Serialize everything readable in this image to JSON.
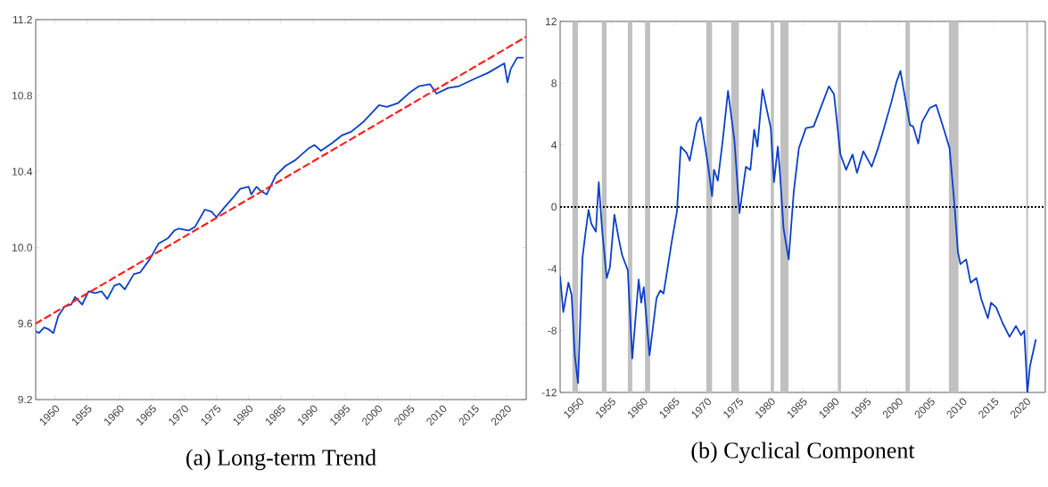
{
  "chart_data": [
    {
      "type": "line",
      "title": "(a) Long-term Trend",
      "xlim": [
        1947,
        2023
      ],
      "ylim": [
        9.2,
        11.2
      ],
      "xticks": [
        1950,
        1955,
        1960,
        1965,
        1970,
        1975,
        1980,
        1985,
        1990,
        1995,
        2000,
        2005,
        2010,
        2015,
        2020
      ],
      "yticks": [
        9.2,
        9.6,
        {
          "value": 10.0,
          "label": "10.0"
        },
        10.4,
        10.8,
        11.2
      ],
      "series": [
        {
          "color": "#0a3fc8",
          "x": [
            1947.0,
            1947.5,
            1948.3,
            1949.0,
            1949.75,
            1950.5,
            1951.5,
            1952.5,
            1953.1,
            1954.2,
            1955.2,
            1956.2,
            1957.2,
            1958.1,
            1959.2,
            1960.0,
            1960.8,
            1962.2,
            1963.2,
            1964.7,
            1966.0,
            1967.5,
            1968.5,
            1969.2,
            1970.7,
            1971.7,
            1973.2,
            1974.2,
            1975.0,
            1976.2,
            1977.5,
            1978.7,
            1980.0,
            1980.4,
            1981.2,
            1981.8,
            1982.8,
            1984.2,
            1985.7,
            1987.2,
            1989.2,
            1990.2,
            1991.2,
            1992.9,
            1994.4,
            1995.9,
            1997.7,
            2000.2,
            2001.4,
            2003.1,
            2005.1,
            2006.4,
            2008.1,
            2009.1,
            2010.9,
            2012.6,
            2015.1,
            2017.1,
            2019.6,
            2020.1,
            2020.6,
            2021.6,
            2022.5
          ],
          "values": [
            9.56,
            9.55,
            9.58,
            9.57,
            9.55,
            9.64,
            9.69,
            9.7,
            9.74,
            9.7,
            9.77,
            9.76,
            9.77,
            9.73,
            9.8,
            9.81,
            9.78,
            9.86,
            9.87,
            9.94,
            10.02,
            10.05,
            10.09,
            10.1,
            10.09,
            10.11,
            10.2,
            10.19,
            10.16,
            10.21,
            10.26,
            10.31,
            10.32,
            10.28,
            10.32,
            10.3,
            10.28,
            10.38,
            10.43,
            10.46,
            10.52,
            10.54,
            10.51,
            10.55,
            10.59,
            10.61,
            10.66,
            10.75,
            10.74,
            10.76,
            10.82,
            10.85,
            10.86,
            10.81,
            10.84,
            10.85,
            10.89,
            10.92,
            10.97,
            10.87,
            10.94,
            11.0,
            11.0
          ]
        },
        {
          "color": "#ff2020",
          "line_style": "dashed",
          "x": [
            1947,
            2023
          ],
          "values": [
            9.6,
            11.11
          ]
        }
      ]
    },
    {
      "type": "line",
      "title": "(b) Cyclical Component",
      "xlim": [
        1947,
        2023
      ],
      "ylim": [
        -12,
        12
      ],
      "xticks": [
        1950,
        1955,
        1960,
        1965,
        1970,
        1975,
        1980,
        1985,
        1990,
        1995,
        2000,
        2005,
        2010,
        2015,
        2020
      ],
      "yticks": [
        -12,
        -8,
        -4,
        0,
        4,
        8,
        12
      ],
      "ref_lines": [
        {
          "axis": "y",
          "value": 0,
          "color": "#000000",
          "line_style": "dotted"
        }
      ],
      "bands": [
        {
          "axis": "x",
          "from": 1948.9,
          "to": 1949.8,
          "color": "#c0c0c0"
        },
        {
          "axis": "x",
          "from": 1953.5,
          "to": 1954.3,
          "color": "#c0c0c0"
        },
        {
          "axis": "x",
          "from": 1957.6,
          "to": 1958.3,
          "color": "#c0c0c0"
        },
        {
          "axis": "x",
          "from": 1960.3,
          "to": 1961.1,
          "color": "#c0c0c0"
        },
        {
          "axis": "x",
          "from": 1969.9,
          "to": 1970.8,
          "color": "#c0c0c0"
        },
        {
          "axis": "x",
          "from": 1973.8,
          "to": 1975.0,
          "color": "#c0c0c0"
        },
        {
          "axis": "x",
          "from": 1980.0,
          "to": 1980.5,
          "color": "#c0c0c0"
        },
        {
          "axis": "x",
          "from": 1981.5,
          "to": 1982.8,
          "color": "#c0c0c0"
        },
        {
          "axis": "x",
          "from": 1990.5,
          "to": 1991.0,
          "color": "#c0c0c0"
        },
        {
          "axis": "x",
          "from": 2001.1,
          "to": 2001.8,
          "color": "#c0c0c0"
        },
        {
          "axis": "x",
          "from": 2007.9,
          "to": 2009.4,
          "color": "#c0c0c0"
        },
        {
          "axis": "x",
          "from": 2020.0,
          "to": 2020.3,
          "color": "#c0c0c0"
        }
      ],
      "series": [
        {
          "color": "#0a3fc8",
          "x": [
            1947.0,
            1947.5,
            1948.3,
            1948.8,
            1949.3,
            1949.8,
            1950.5,
            1951.0,
            1951.45,
            1951.9,
            1952.6,
            1953.05,
            1953.6,
            1954.3,
            1954.8,
            1955.5,
            1956.2,
            1956.7,
            1957.6,
            1958.3,
            1959.3,
            1959.7,
            1960.1,
            1961.0,
            1962.1,
            1962.7,
            1963.2,
            1963.7,
            1964.5,
            1965.3,
            1965.9,
            1966.8,
            1967.3,
            1968.4,
            1969.0,
            1970.2,
            1970.8,
            1971.1,
            1971.7,
            1972.5,
            1973.3,
            1974.3,
            1975.1,
            1976.1,
            1976.8,
            1977.4,
            1977.9,
            1978.7,
            1980.0,
            1980.5,
            1981.1,
            1981.4,
            1982.0,
            1982.8,
            1983.6,
            1984.4,
            1985.5,
            1986.7,
            1987.8,
            1989.1,
            1989.9,
            1990.9,
            1991.8,
            1992.8,
            1993.5,
            1994.5,
            1995.8,
            1996.8,
            1997.6,
            1998.9,
            1999.7,
            2000.3,
            2001.1,
            2001.8,
            2002.3,
            2003.1,
            2003.7,
            2004.9,
            2005.9,
            2007.2,
            2008.0,
            2008.8,
            2009.3,
            2009.7,
            2010.6,
            2011.3,
            2012.2,
            2013.0,
            2014.0,
            2014.5,
            2015.3,
            2016.3,
            2017.4,
            2018.4,
            2019.2,
            2019.7,
            2020.2,
            2020.6,
            2021.5
          ],
          "values": [
            -4.5,
            -6.8,
            -4.9,
            -5.7,
            -9.6,
            -11.4,
            -3.3,
            -1.6,
            -0.2,
            -1.1,
            -1.6,
            1.6,
            -1.6,
            -4.6,
            -3.9,
            -0.5,
            -2.1,
            -3.1,
            -4.1,
            -9.8,
            -4.7,
            -6.2,
            -5.2,
            -9.6,
            -5.9,
            -5.4,
            -5.6,
            -4.3,
            -2.2,
            -0.3,
            3.9,
            3.5,
            3.0,
            5.4,
            5.8,
            2.6,
            0.7,
            2.4,
            1.7,
            4.4,
            7.5,
            4.3,
            -0.4,
            2.6,
            2.4,
            5.0,
            3.9,
            7.6,
            5.1,
            1.6,
            3.9,
            2.4,
            -1.4,
            -3.4,
            1.0,
            3.8,
            5.1,
            5.2,
            6.4,
            7.8,
            7.3,
            3.4,
            2.4,
            3.4,
            2.2,
            3.6,
            2.6,
            3.8,
            4.9,
            6.8,
            8.1,
            8.8,
            6.9,
            5.3,
            5.2,
            4.1,
            5.5,
            6.4,
            6.6,
            4.9,
            3.8,
            0.0,
            -2.9,
            -3.7,
            -3.4,
            -4.9,
            -4.6,
            -6.0,
            -7.2,
            -6.2,
            -6.5,
            -7.5,
            -8.4,
            -7.7,
            -8.3,
            -8.0,
            -12.0,
            -10.3,
            -8.6
          ]
        }
      ]
    }
  ]
}
